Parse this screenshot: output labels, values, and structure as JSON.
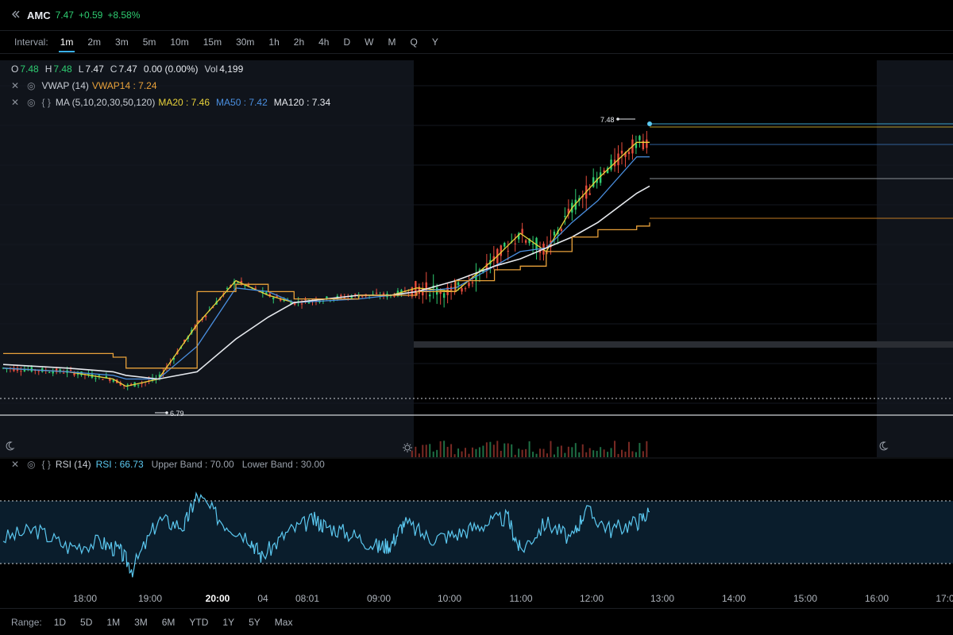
{
  "header": {
    "symbol": "AMC",
    "price": "7.47",
    "change": "+0.59",
    "change_pct": "+8.58%",
    "collapse_icon": "double-chevron-left-icon"
  },
  "interval": {
    "label": "Interval:",
    "options": [
      "1m",
      "2m",
      "3m",
      "5m",
      "10m",
      "15m",
      "30m",
      "1h",
      "2h",
      "4h",
      "D",
      "W",
      "M",
      "Q",
      "Y"
    ],
    "active": "1m"
  },
  "ohlc": {
    "o_label": "O",
    "o": "7.48",
    "h_label": "H",
    "h": "7.48",
    "l_label": "L",
    "l": "7.47",
    "c_label": "C",
    "c": "7.47",
    "change": "0.00 (0.00%)",
    "vol_label": "Vol",
    "vol": "4,199"
  },
  "indicators": {
    "vwap": {
      "name": "VWAP (14)",
      "value_label": "VWAP14 : 7.24"
    },
    "ma": {
      "name": "MA (5,10,20,30,50,120)",
      "ma20": "MA20 : 7.46",
      "ma50": "MA50 : 7.42",
      "ma120": "MA120 : 7.34"
    },
    "rsi": {
      "name": "RSI (14)",
      "value": "RSI : 66.73",
      "upper": "Upper Band : 70.00",
      "lower": "Lower Band : 30.00"
    }
  },
  "range": {
    "label": "Range:",
    "options": [
      "1D",
      "5D",
      "1M",
      "3M",
      "6M",
      "YTD",
      "1Y",
      "5Y",
      "Max"
    ]
  },
  "colors": {
    "up": "#2ecc71",
    "down": "#e74c3c",
    "vwap": "#e8a13a",
    "ma20": "#e8d23a",
    "ma50": "#4a8fe0",
    "ma120": "#e6e9ee",
    "rsi": "#5bc8f0",
    "session_bg": "#10141b"
  },
  "chart_data": [
    {
      "type": "line",
      "title": "",
      "xlabel": "",
      "ylabel": "",
      "x_ticks": [
        "18:00",
        "19:00",
        "20:00",
        "04",
        "08:01",
        "09:00",
        "10:00",
        "11:00",
        "12:00",
        "13:00",
        "14:00",
        "15:00",
        "16:00",
        "17:0"
      ],
      "ylim": [
        6.7,
        7.55
      ],
      "annotations": [
        {
          "label": "7.48",
          "value": 7.48
        },
        {
          "label": "6.79",
          "value": 6.79
        }
      ],
      "series": [
        {
          "name": "MA20",
          "x": [
            0,
            10,
            17,
            19,
            24,
            30,
            36,
            41,
            45,
            55,
            60,
            64,
            70,
            76,
            80,
            84,
            88,
            92,
            98,
            100
          ],
          "y": [
            6.84,
            6.83,
            6.81,
            6.79,
            6.81,
            6.96,
            7.08,
            7.04,
            7.02,
            7.04,
            7.04,
            7.06,
            7.05,
            7.14,
            7.21,
            7.16,
            7.28,
            7.36,
            7.46,
            7.46
          ]
        },
        {
          "name": "MA50",
          "x": [
            0,
            10,
            17,
            19,
            24,
            30,
            36,
            41,
            45,
            55,
            60,
            64,
            70,
            76,
            80,
            84,
            88,
            92,
            98,
            100
          ],
          "y": [
            6.84,
            6.83,
            6.82,
            6.81,
            6.81,
            6.9,
            7.06,
            7.05,
            7.02,
            7.03,
            7.04,
            7.05,
            7.06,
            7.12,
            7.16,
            7.17,
            7.24,
            7.3,
            7.42,
            7.42
          ]
        },
        {
          "name": "MA120",
          "x": [
            0,
            10,
            17,
            19,
            24,
            30,
            36,
            41,
            45,
            55,
            60,
            64,
            70,
            76,
            80,
            84,
            88,
            92,
            98,
            100
          ],
          "y": [
            6.85,
            6.84,
            6.83,
            6.82,
            6.81,
            6.83,
            6.92,
            6.98,
            7.02,
            7.04,
            7.04,
            7.05,
            7.08,
            7.12,
            7.14,
            7.17,
            7.2,
            7.24,
            7.32,
            7.34
          ]
        },
        {
          "name": "VWAP14",
          "x": [
            0,
            10,
            17,
            19,
            24,
            30,
            36,
            41,
            45,
            55,
            60,
            64,
            70,
            76,
            80,
            84,
            88,
            92,
            98,
            100
          ],
          "y": [
            6.88,
            6.88,
            6.87,
            6.84,
            6.84,
            7.05,
            7.07,
            7.05,
            7.03,
            7.04,
            7.04,
            7.05,
            7.08,
            7.11,
            7.12,
            7.16,
            7.2,
            7.22,
            7.23,
            7.24
          ]
        }
      ]
    },
    {
      "type": "line",
      "title": "",
      "ylim": [
        0,
        100
      ],
      "bands": [
        70,
        30
      ],
      "series": [
        {
          "name": "RSI",
          "x": [
            0,
            5,
            10,
            15,
            18,
            20,
            24,
            28,
            30,
            34,
            38,
            40,
            44,
            48,
            50,
            54,
            58,
            60,
            62,
            66,
            70,
            74,
            78,
            80,
            84,
            88,
            90,
            94,
            98,
            100
          ],
          "y": [
            45,
            52,
            38,
            42,
            35,
            20,
            60,
            55,
            80,
            58,
            46,
            30,
            50,
            60,
            55,
            48,
            38,
            40,
            58,
            45,
            48,
            56,
            62,
            35,
            58,
            44,
            68,
            52,
            58,
            66.73
          ]
        }
      ]
    }
  ]
}
